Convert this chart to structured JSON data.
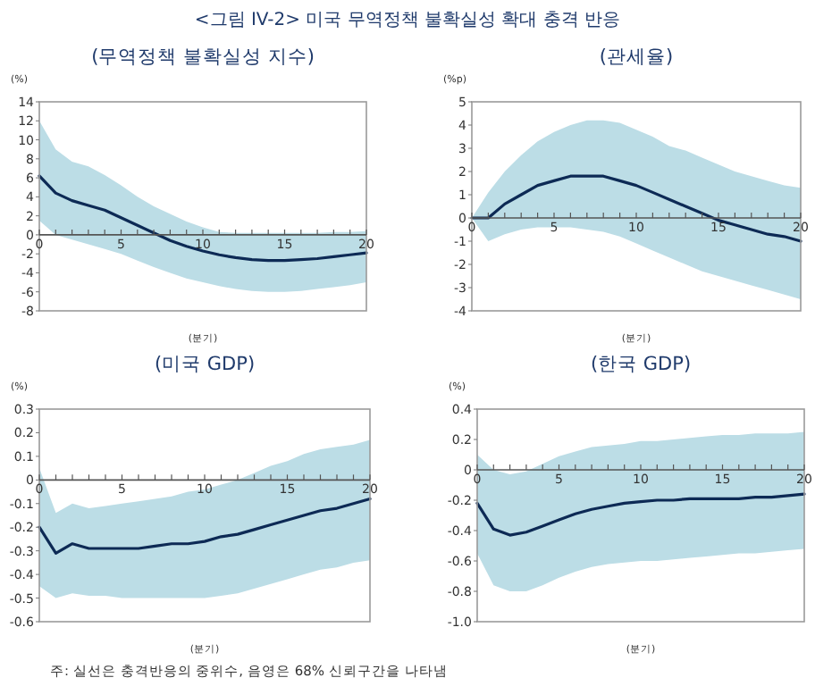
{
  "chart_data": [
    {
      "type": "line",
      "title": "(무역정책 불확실성 지수)",
      "ylabel": "(%)",
      "xlabel": "(분기)",
      "annotations": [
        "<그림 IV-2> 미국 무역정책 불확실성 확대 충격 반응"
      ],
      "x": [
        0,
        1,
        2,
        3,
        4,
        5,
        6,
        7,
        8,
        9,
        10,
        11,
        12,
        13,
        14,
        15,
        16,
        17,
        18,
        19,
        20
      ],
      "xlim": [
        0,
        20
      ],
      "xticks": [
        0,
        5,
        10,
        15,
        20
      ],
      "ylim": [
        -8,
        14
      ],
      "yticks": [
        -8,
        -6,
        -4,
        -2,
        0,
        2,
        4,
        6,
        8,
        10,
        12,
        14
      ],
      "series": [
        {
          "color": "#0d2a55",
          "values": [
            6.2,
            4.4,
            3.6,
            3.1,
            2.6,
            1.8,
            1.0,
            0.2,
            -0.6,
            -1.2,
            -1.7,
            -2.1,
            -2.4,
            -2.6,
            -2.7,
            -2.7,
            -2.6,
            -2.5,
            -2.3,
            -2.1,
            -1.9
          ],
          "lower": [
            1.5,
            0,
            -0.5,
            -1,
            -1.5,
            -2,
            -2.7,
            -3.4,
            -4,
            -4.6,
            -5,
            -5.4,
            -5.7,
            -5.9,
            -6,
            -6,
            -5.9,
            -5.7,
            -5.5,
            -5.3,
            -5
          ],
          "upper": [
            12,
            9,
            7.7,
            7.2,
            6.3,
            5.2,
            4.0,
            3.0,
            2.2,
            1.4,
            0.8,
            0.3,
            0.2,
            0.2,
            0.2,
            0.2,
            0.2,
            0.2,
            0.3,
            0.3,
            0.4
          ]
        }
      ]
    },
    {
      "type": "line",
      "title": "(관세율)",
      "ylabel": "(%p)",
      "xlabel": "(분기)",
      "x": [
        0,
        1,
        2,
        3,
        4,
        5,
        6,
        7,
        8,
        9,
        10,
        11,
        12,
        13,
        14,
        15,
        16,
        17,
        18,
        19,
        20
      ],
      "xlim": [
        0,
        20
      ],
      "xticks": [
        0,
        5,
        10,
        15,
        20
      ],
      "ylim": [
        -4,
        5
      ],
      "yticks": [
        -4,
        -3,
        -2,
        -1,
        0,
        1,
        2,
        3,
        4,
        5
      ],
      "series": [
        {
          "color": "#0d2a55",
          "values": [
            0,
            0,
            0.6,
            1.0,
            1.4,
            1.6,
            1.8,
            1.8,
            1.8,
            1.6,
            1.4,
            1.1,
            0.8,
            0.5,
            0.2,
            -0.1,
            -0.3,
            -0.5,
            -0.7,
            -0.8,
            -1.0
          ],
          "lower": [
            0,
            -1.0,
            -0.7,
            -0.5,
            -0.4,
            -0.4,
            -0.4,
            -0.5,
            -0.6,
            -0.8,
            -1.1,
            -1.4,
            -1.7,
            -2.0,
            -2.3,
            -2.5,
            -2.7,
            -2.9,
            -3.1,
            -3.3,
            -3.5
          ],
          "upper": [
            0,
            1.1,
            2.0,
            2.7,
            3.3,
            3.7,
            4.0,
            4.2,
            4.2,
            4.1,
            3.8,
            3.5,
            3.1,
            2.9,
            2.6,
            2.3,
            2.0,
            1.8,
            1.6,
            1.4,
            1.3
          ]
        }
      ]
    },
    {
      "type": "line",
      "title": "(미국 GDP)",
      "ylabel": "(%)",
      "xlabel": "(분기)",
      "x": [
        0,
        1,
        2,
        3,
        4,
        5,
        6,
        7,
        8,
        9,
        10,
        11,
        12,
        13,
        14,
        15,
        16,
        17,
        18,
        19,
        20
      ],
      "xlim": [
        0,
        20
      ],
      "xticks": [
        0,
        5,
        10,
        15,
        20
      ],
      "ylim": [
        -0.6,
        0.3
      ],
      "yticks": [
        -0.6,
        -0.5,
        -0.4,
        -0.3,
        -0.2,
        -0.1,
        0,
        0.1,
        0.2,
        0.3
      ],
      "series": [
        {
          "color": "#0d2a55",
          "values": [
            -0.2,
            -0.31,
            -0.27,
            -0.29,
            -0.29,
            -0.29,
            -0.29,
            -0.28,
            -0.27,
            -0.27,
            -0.26,
            -0.24,
            -0.23,
            -0.21,
            -0.19,
            -0.17,
            -0.15,
            -0.13,
            -0.12,
            -0.1,
            -0.08
          ],
          "lower": [
            -0.45,
            -0.5,
            -0.48,
            -0.49,
            -0.49,
            -0.5,
            -0.5,
            -0.5,
            -0.5,
            -0.5,
            -0.5,
            -0.49,
            -0.48,
            -0.46,
            -0.44,
            -0.42,
            -0.4,
            -0.38,
            -0.37,
            -0.35,
            -0.34
          ],
          "upper": [
            0.05,
            -0.14,
            -0.1,
            -0.12,
            -0.11,
            -0.1,
            -0.09,
            -0.08,
            -0.07,
            -0.05,
            -0.04,
            -0.02,
            0.0,
            0.03,
            0.06,
            0.08,
            0.11,
            0.13,
            0.14,
            0.15,
            0.17
          ]
        }
      ]
    },
    {
      "type": "line",
      "title": "(한국 GDP)",
      "ylabel": "(%)",
      "xlabel": "(분기)",
      "annotations": [
        "주: 실선은 충격반응의 중위수, 음영은 68% 신뢰구간을 나타냄"
      ],
      "x": [
        0,
        1,
        2,
        3,
        4,
        5,
        6,
        7,
        8,
        9,
        10,
        11,
        12,
        13,
        14,
        15,
        16,
        17,
        18,
        19,
        20
      ],
      "xlim": [
        0,
        20
      ],
      "xticks": [
        0,
        5,
        10,
        15,
        20
      ],
      "ylim": [
        -1.0,
        0.4
      ],
      "yticks": [
        {
          "value": -1.0,
          "label": "-1.0"
        },
        {
          "value": -0.8,
          "label": "-0.8"
        },
        {
          "value": -0.6,
          "label": "-0.6"
        },
        {
          "value": -0.4,
          "label": "-0.4"
        },
        {
          "value": -0.2,
          "label": "-0.2"
        },
        0,
        {
          "value": 0.2,
          "label": "0.2"
        },
        {
          "value": 0.4,
          "label": "0.4"
        }
      ],
      "series": [
        {
          "color": "#0d2a55",
          "values": [
            -0.22,
            -0.39,
            -0.43,
            -0.41,
            -0.37,
            -0.33,
            -0.29,
            -0.26,
            -0.24,
            -0.22,
            -0.21,
            -0.2,
            -0.2,
            -0.19,
            -0.19,
            -0.19,
            -0.19,
            -0.18,
            -0.18,
            -0.17,
            -0.16
          ],
          "lower": [
            -0.55,
            -0.76,
            -0.8,
            -0.8,
            -0.76,
            -0.71,
            -0.67,
            -0.64,
            -0.62,
            -0.61,
            -0.6,
            -0.6,
            -0.59,
            -0.58,
            -0.57,
            -0.56,
            -0.55,
            -0.55,
            -0.54,
            -0.53,
            -0.52
          ],
          "upper": [
            0.1,
            0.0,
            -0.03,
            -0.01,
            0.04,
            0.09,
            0.12,
            0.15,
            0.16,
            0.17,
            0.19,
            0.19,
            0.2,
            0.21,
            0.22,
            0.23,
            0.23,
            0.24,
            0.24,
            0.24,
            0.25
          ]
        }
      ]
    }
  ]
}
